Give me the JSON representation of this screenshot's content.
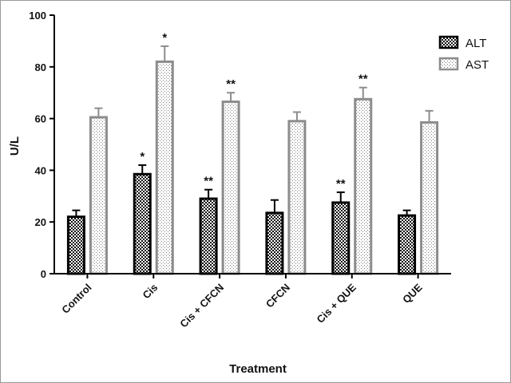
{
  "chart_data": {
    "type": "bar",
    "categories": [
      "Control",
      "Cis",
      "Cis + CFCN",
      "CFCN",
      "Cis + QUE",
      "QUE"
    ],
    "series": [
      {
        "name": "ALT",
        "values": [
          22,
          38.5,
          29,
          23.5,
          27.5,
          22.5
        ],
        "errors": [
          2.5,
          3.5,
          3.5,
          5,
          4,
          2
        ],
        "annotations": [
          "",
          "*",
          "**",
          "",
          "**",
          ""
        ],
        "pattern": "checker",
        "color": "#000000"
      },
      {
        "name": "AST",
        "values": [
          60.5,
          82,
          66.5,
          59,
          67.5,
          58.5
        ],
        "errors": [
          3.5,
          6,
          3.5,
          3.5,
          4.5,
          4.5
        ],
        "annotations": [
          "",
          "*",
          "**",
          "",
          "**",
          ""
        ],
        "pattern": "dotted",
        "color": "#8c8c8c"
      }
    ],
    "xlabel": "Treatment",
    "ylabel": "U/L",
    "ylim": [
      0,
      100
    ],
    "yticks": [
      0,
      20,
      40,
      60,
      80,
      100
    ],
    "grid": false,
    "legend_position": "top-right"
  }
}
